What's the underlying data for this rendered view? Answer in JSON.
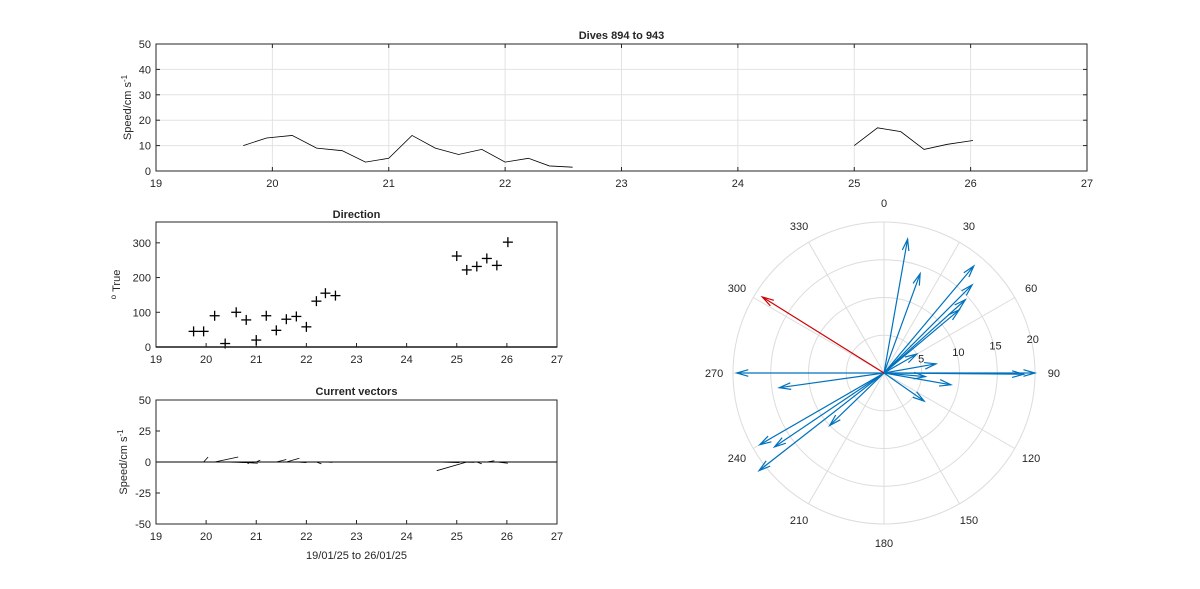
{
  "chart_data": [
    {
      "type": "line",
      "title": "Dives 894 to 943",
      "ylabel": "Speed/cm s",
      "ylabel_sup": "-1",
      "xlim": [
        19,
        27
      ],
      "ylim": [
        0,
        50
      ],
      "xticks": [
        19,
        20,
        21,
        22,
        23,
        24,
        25,
        26,
        27
      ],
      "yticks": [
        0,
        10,
        20,
        30,
        40,
        50
      ],
      "grid": true,
      "series": [
        {
          "color": "#000000",
          "segments": [
            [
              [
                19.75,
                10
              ],
              [
                19.95,
                13
              ],
              [
                20.17,
                14
              ],
              [
                20.38,
                9
              ],
              [
                20.6,
                8
              ],
              [
                20.8,
                3.5
              ],
              [
                21.0,
                5
              ],
              [
                21.2,
                14
              ],
              [
                21.4,
                9
              ],
              [
                21.6,
                6.5
              ],
              [
                21.8,
                8.5
              ],
              [
                22.0,
                3.5
              ],
              [
                22.2,
                5
              ],
              [
                22.38,
                2
              ],
              [
                22.58,
                1.5
              ]
            ],
            [
              [
                25.0,
                10
              ],
              [
                25.2,
                17
              ],
              [
                25.4,
                15.5
              ],
              [
                25.6,
                8.5
              ],
              [
                25.8,
                10.5
              ],
              [
                26.02,
                12
              ]
            ]
          ]
        }
      ]
    },
    {
      "type": "scatter",
      "title": "Direction",
      "ylabel": "True",
      "ylabel_prefix": "o",
      "xlim": [
        19,
        27
      ],
      "ylim": [
        0,
        360
      ],
      "xticks": [
        19,
        20,
        21,
        22,
        23,
        24,
        25,
        26,
        27
      ],
      "yticks": [
        0,
        100,
        200,
        300
      ],
      "grid": false,
      "marker": "+",
      "points": [
        [
          19.75,
          45
        ],
        [
          19.95,
          45
        ],
        [
          20.17,
          90
        ],
        [
          20.38,
          10
        ],
        [
          20.6,
          100
        ],
        [
          20.8,
          78
        ],
        [
          21.0,
          20
        ],
        [
          21.2,
          90
        ],
        [
          21.4,
          48
        ],
        [
          21.6,
          80
        ],
        [
          21.8,
          88
        ],
        [
          22.0,
          58
        ],
        [
          22.2,
          132
        ],
        [
          22.38,
          155
        ],
        [
          22.58,
          148
        ],
        [
          25.0,
          262
        ],
        [
          25.2,
          222
        ],
        [
          25.4,
          232
        ],
        [
          25.6,
          255
        ],
        [
          25.8,
          235
        ],
        [
          26.02,
          302
        ]
      ]
    },
    {
      "type": "quiver",
      "title": "Current vectors",
      "ylabel": "Speed/cm s",
      "ylabel_sup": "-1",
      "xlabel": "19/01/25 to 26/01/25",
      "xlim": [
        19,
        27
      ],
      "ylim": [
        -50,
        50
      ],
      "xticks": [
        19,
        20,
        21,
        22,
        23,
        24,
        25,
        26,
        27
      ],
      "yticks": [
        -50,
        -25,
        0,
        25,
        50
      ],
      "baseline": 0,
      "vectors": [
        {
          "x": 19.75,
          "u": 0.07,
          "v": 0
        },
        {
          "x": 19.95,
          "u": 0.09,
          "v": 4.0
        },
        {
          "x": 20.17,
          "u": 0.47,
          "v": 4.0
        },
        {
          "x": 20.38,
          "u": 0.45,
          "v": -0.5
        },
        {
          "x": 20.6,
          "u": 0.43,
          "v": -1.0
        },
        {
          "x": 20.8,
          "u": 0.05,
          "v": -1.5
        },
        {
          "x": 21.0,
          "u": 0.08,
          "v": 1.5
        },
        {
          "x": 21.2,
          "u": 0.2,
          "v": 0
        },
        {
          "x": 21.4,
          "u": 0.2,
          "v": 2.0
        },
        {
          "x": 21.6,
          "u": 0.26,
          "v": 3.0
        },
        {
          "x": 21.8,
          "u": 0.2,
          "v": -0.5
        },
        {
          "x": 22.0,
          "u": 0.1,
          "v": 0
        },
        {
          "x": 22.2,
          "u": 0.1,
          "v": -1.5
        },
        {
          "x": 22.38,
          "u": 0.14,
          "v": -0.3
        },
        {
          "x": 22.58,
          "u": 0.1,
          "v": 0
        },
        {
          "x": 24.55,
          "u": 0.45,
          "v": 0
        },
        {
          "x": 24.6,
          "u": 0.45,
          "v": -0.5
        },
        {
          "x": 25.0,
          "u": 0.35,
          "v": -0.3
        },
        {
          "x": 25.2,
          "u": -0.6,
          "v": -7.0
        },
        {
          "x": 25.4,
          "u": 0.1,
          "v": -1.5
        },
        {
          "x": 25.6,
          "u": 0.15,
          "v": 1.0
        },
        {
          "x": 25.8,
          "u": 0.22,
          "v": -1.0
        },
        {
          "x": 26.02,
          "u": 0.1,
          "v": 0
        }
      ]
    },
    {
      "type": "compass",
      "rlim": [
        0,
        20
      ],
      "rticks": [
        5,
        10,
        15,
        20
      ],
      "theta_ticks": [
        0,
        30,
        60,
        90,
        120,
        150,
        180,
        210,
        240,
        270,
        300,
        330
      ],
      "theta_zero": "top",
      "theta_direction": "clockwise",
      "vectors": [
        {
          "speed": 20,
          "dir": 90,
          "color": "#0072BD"
        },
        {
          "speed": 18.5,
          "dir": 90.5,
          "color": "#0072BD"
        },
        {
          "speed": 9,
          "dir": 100,
          "color": "#0072BD"
        },
        {
          "speed": 7,
          "dir": 80,
          "color": "#0072BD"
        },
        {
          "speed": 6.5,
          "dir": 125,
          "color": "#0072BD"
        },
        {
          "speed": 5.5,
          "dir": 95,
          "color": "#0072BD"
        },
        {
          "speed": 5,
          "dir": 60,
          "color": "#0072BD"
        },
        {
          "speed": 18.5,
          "dir": 40,
          "color": "#0072BD"
        },
        {
          "speed": 16.5,
          "dir": 45,
          "color": "#0072BD"
        },
        {
          "speed": 14.5,
          "dir": 48,
          "color": "#0072BD"
        },
        {
          "speed": 13,
          "dir": 50,
          "color": "#0072BD"
        },
        {
          "speed": 18,
          "dir": 10,
          "color": "#0072BD"
        },
        {
          "speed": 14,
          "dir": 20,
          "color": "#0072BD"
        },
        {
          "speed": 19,
          "dir": 240,
          "color": "#0072BD"
        },
        {
          "speed": 21,
          "dir": 232,
          "color": "#0072BD"
        },
        {
          "speed": 17.5,
          "dir": 236,
          "color": "#0072BD"
        },
        {
          "speed": 10,
          "dir": 226,
          "color": "#0072BD"
        },
        {
          "speed": 19.5,
          "dir": 270,
          "color": "#0072BD"
        },
        {
          "speed": 14,
          "dir": 262,
          "color": "#0072BD"
        },
        {
          "speed": 19,
          "dir": 302,
          "color": "#D00000"
        }
      ]
    }
  ]
}
